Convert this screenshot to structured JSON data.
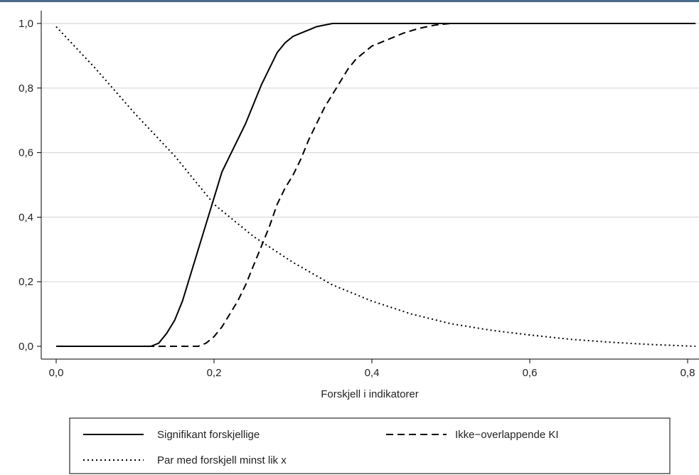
{
  "colors": {
    "grid": "#d9d9d9",
    "line": "#000000",
    "axis": "#000000",
    "accent": "#4a6a8c"
  },
  "chart_data": {
    "type": "line",
    "title": "",
    "xlabel": "Forskjell i indikatorer",
    "ylabel": "",
    "xlim": [
      0,
      0.81
    ],
    "ylim": [
      0,
      1.0
    ],
    "x_ticks": [
      0,
      0.2,
      0.4,
      0.6,
      0.8
    ],
    "x_tick_labels": [
      "0,0",
      "0,2",
      "0,4",
      "0,6",
      "0,8"
    ],
    "y_ticks": [
      0,
      0.2,
      0.4,
      0.6,
      0.8,
      1.0
    ],
    "y_tick_labels": [
      "0,0",
      "0,2",
      "0,4",
      "0,6",
      "0,8",
      "1,0"
    ],
    "grid": "horizontal",
    "legend_position": "bottom",
    "series": [
      {
        "name": "Signifikant forskjellige",
        "style": "solid",
        "points": [
          [
            0.0,
            0.0
          ],
          [
            0.12,
            0.0
          ],
          [
            0.13,
            0.01
          ],
          [
            0.14,
            0.04
          ],
          [
            0.15,
            0.08
          ],
          [
            0.16,
            0.14
          ],
          [
            0.17,
            0.22
          ],
          [
            0.18,
            0.3
          ],
          [
            0.19,
            0.38
          ],
          [
            0.2,
            0.46
          ],
          [
            0.21,
            0.54
          ],
          [
            0.22,
            0.59
          ],
          [
            0.23,
            0.64
          ],
          [
            0.24,
            0.69
          ],
          [
            0.25,
            0.75
          ],
          [
            0.26,
            0.81
          ],
          [
            0.27,
            0.86
          ],
          [
            0.28,
            0.91
          ],
          [
            0.29,
            0.94
          ],
          [
            0.3,
            0.96
          ],
          [
            0.31,
            0.97
          ],
          [
            0.32,
            0.98
          ],
          [
            0.33,
            0.99
          ],
          [
            0.35,
            1.0
          ],
          [
            0.81,
            1.0
          ]
        ]
      },
      {
        "name": "Ikke−overlappende KI",
        "style": "dashed",
        "points": [
          [
            0.0,
            0.0
          ],
          [
            0.18,
            0.0
          ],
          [
            0.19,
            0.01
          ],
          [
            0.2,
            0.03
          ],
          [
            0.21,
            0.06
          ],
          [
            0.22,
            0.1
          ],
          [
            0.23,
            0.14
          ],
          [
            0.24,
            0.19
          ],
          [
            0.25,
            0.25
          ],
          [
            0.26,
            0.31
          ],
          [
            0.27,
            0.37
          ],
          [
            0.28,
            0.44
          ],
          [
            0.29,
            0.49
          ],
          [
            0.3,
            0.53
          ],
          [
            0.31,
            0.58
          ],
          [
            0.32,
            0.64
          ],
          [
            0.33,
            0.69
          ],
          [
            0.34,
            0.74
          ],
          [
            0.35,
            0.78
          ],
          [
            0.36,
            0.82
          ],
          [
            0.37,
            0.86
          ],
          [
            0.38,
            0.89
          ],
          [
            0.39,
            0.91
          ],
          [
            0.4,
            0.93
          ],
          [
            0.42,
            0.95
          ],
          [
            0.44,
            0.97
          ],
          [
            0.46,
            0.985
          ],
          [
            0.48,
            0.995
          ],
          [
            0.5,
            1.0
          ],
          [
            0.81,
            1.0
          ]
        ]
      },
      {
        "name": "Par med forskjell minst lik x",
        "style": "dotted",
        "points": [
          [
            0.0,
            0.99
          ],
          [
            0.05,
            0.86
          ],
          [
            0.1,
            0.72
          ],
          [
            0.15,
            0.59
          ],
          [
            0.2,
            0.44
          ],
          [
            0.25,
            0.34
          ],
          [
            0.3,
            0.26
          ],
          [
            0.35,
            0.19
          ],
          [
            0.4,
            0.14
          ],
          [
            0.45,
            0.1
          ],
          [
            0.5,
            0.07
          ],
          [
            0.55,
            0.05
          ],
          [
            0.6,
            0.035
          ],
          [
            0.65,
            0.022
          ],
          [
            0.7,
            0.013
          ],
          [
            0.75,
            0.006
          ],
          [
            0.81,
            0.0
          ]
        ]
      }
    ]
  }
}
